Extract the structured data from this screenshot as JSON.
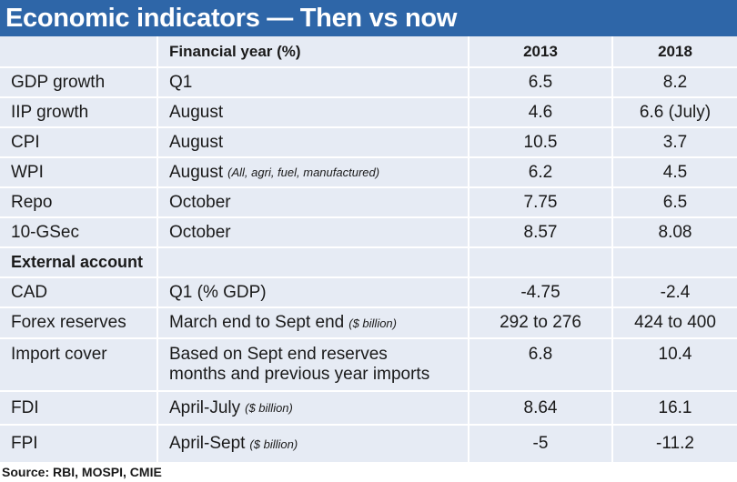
{
  "title": "Economic indicators — Then vs now",
  "header": {
    "period_label": "Financial year (%)",
    "year1": "2013",
    "year2": "2018"
  },
  "rows": [
    {
      "name": "GDP growth",
      "period": "Q1",
      "note": "",
      "y1": "6.5",
      "y2": "8.2"
    },
    {
      "name": "IIP growth",
      "period": "August",
      "note": "",
      "y1": "4.6",
      "y2": "6.6 (July)"
    },
    {
      "name": "CPI",
      "period": "August",
      "note": "",
      "y1": "10.5",
      "y2": "3.7"
    },
    {
      "name": "WPI",
      "period": "August",
      "note": "(All, agri, fuel, manufactured)",
      "y1": "6.2",
      "y2": "4.5"
    },
    {
      "name": "Repo",
      "period": "October",
      "note": "",
      "y1": "7.75",
      "y2": "6.5"
    },
    {
      "name": "10-GSec",
      "period": "October",
      "note": "",
      "y1": "8.57",
      "y2": "8.08"
    }
  ],
  "section_label": "External account",
  "external_rows": [
    {
      "name": "CAD",
      "period": "Q1 (% GDP)",
      "note": "",
      "y1": "-4.75",
      "y2": "-2.4"
    },
    {
      "name": "Forex reserves",
      "period": "March end to Sept end",
      "note": "($ billion)",
      "y1": "292 to 276",
      "y2": "424 to 400"
    },
    {
      "name": "Import cover",
      "period_line1": "Based on Sept end reserves",
      "period_line2": "months and previous year imports",
      "y1": "6.8",
      "y2": "10.4"
    },
    {
      "name": "FDI",
      "period": "April-July",
      "note": "($ billion)",
      "y1": "8.64",
      "y2": "16.1"
    },
    {
      "name": "FPI",
      "period": "April-Sept",
      "note": "($ billion)",
      "y1": "-5",
      "y2": "-11.2"
    }
  ],
  "source": "Source: RBI, MOSPI, CMIE",
  "colors": {
    "header_bg": "#2e66a8",
    "table_bg": "#e6ebf4",
    "grid": "#ffffff"
  }
}
